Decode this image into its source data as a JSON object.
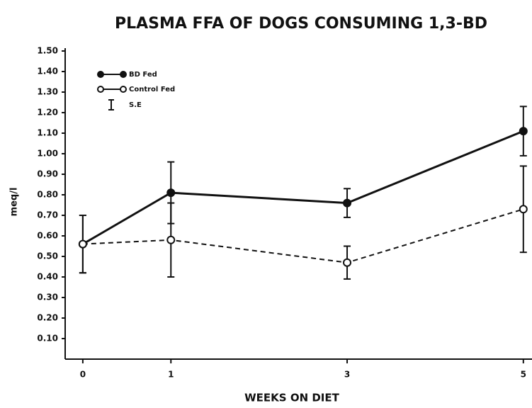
{
  "chart_data": {
    "type": "line",
    "title": "PLASMA FFA OF DOGS CONSUMING 1,3-BD",
    "xlabel": "WEEKS ON DIET",
    "ylabel": "meq/l",
    "x": [
      0,
      1,
      3,
      5
    ],
    "series": [
      {
        "name": "BD Fed",
        "color": "#111111",
        "dashed": false,
        "marker_filled": true,
        "values": [
          0.56,
          0.81,
          0.76,
          1.11
        ],
        "errors": [
          0.14,
          0.15,
          0.07,
          0.12
        ]
      },
      {
        "name": "Control Fed",
        "color": "#111111",
        "dashed": true,
        "marker_filled": false,
        "values": [
          0.56,
          0.58,
          0.47,
          0.73
        ],
        "errors": [
          0.14,
          0.18,
          0.08,
          0.21
        ]
      }
    ],
    "error_label": "S.E",
    "xlim": [
      -0.2,
      5.09
    ],
    "xticks": [
      0,
      1,
      3,
      5
    ],
    "ylim": [
      0,
      1.5
    ],
    "yticks": [
      {
        "value": 0.1,
        "label": "0.10"
      },
      {
        "value": 0.2,
        "label": "0.20"
      },
      {
        "value": 0.3,
        "label": "0.30"
      },
      {
        "value": 0.4,
        "label": "0.40"
      },
      {
        "value": 0.5,
        "label": "0.50"
      },
      {
        "value": 0.6,
        "label": "0.60"
      },
      {
        "value": 0.7,
        "label": "0.70"
      },
      {
        "value": 0.8,
        "label": "0.80"
      },
      {
        "value": 0.9,
        "label": "0.90"
      },
      {
        "value": 1.0,
        "label": "1.00"
      },
      {
        "value": 1.1,
        "label": "1.10"
      },
      {
        "value": 1.2,
        "label": "1.20"
      },
      {
        "value": 1.3,
        "label": "1.30"
      },
      {
        "value": 1.4,
        "label": "1.40"
      },
      {
        "value": 1.5,
        "label": "1.50"
      }
    ],
    "grid": false
  }
}
